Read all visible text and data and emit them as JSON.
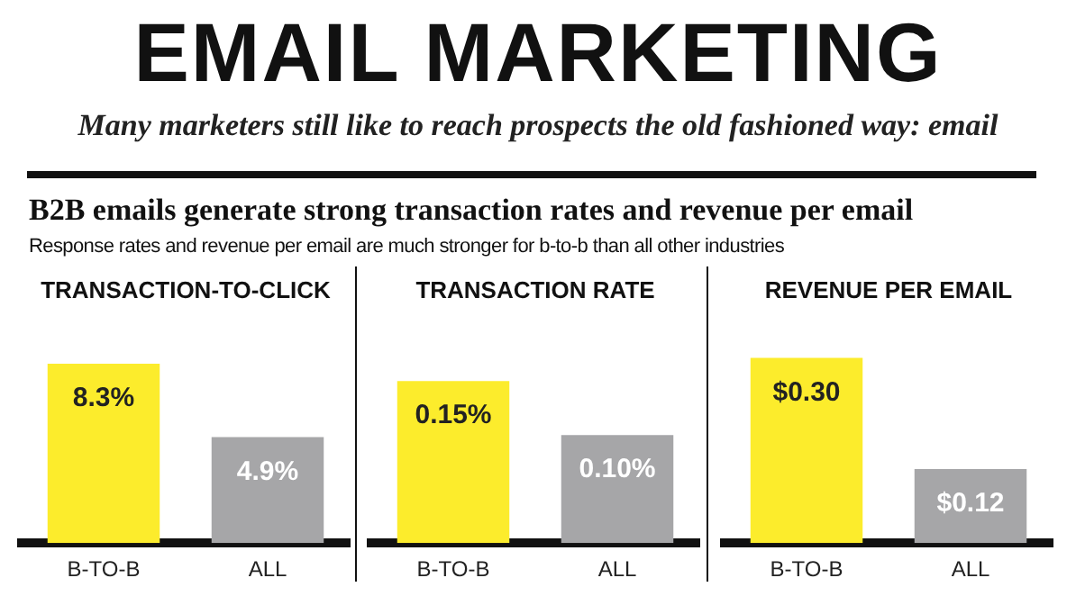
{
  "chart_data": [
    {
      "type": "other",
      "title": "EMAIL MARKETING",
      "subtitle": "Many marketers still like to reach prospects the old fashioned way: email",
      "annotations": [
        "B2B emails generate strong transaction rates and revenue per email",
        "Response rates and revenue per email are much stronger for b-to-b than all other industries"
      ]
    },
    {
      "type": "bar",
      "title": "TRANSACTION-TO-CLICK",
      "categories": [
        "B-TO-B",
        "ALL"
      ],
      "values": [
        8.3,
        4.9
      ],
      "colors": [
        "#fcec2c",
        "#a6a6a8"
      ],
      "value_labels": [
        "8.3%",
        "4.9%"
      ],
      "tick_labels": "x",
      "grid": false,
      "legend": false
    },
    {
      "type": "bar",
      "title": "TRANSACTION RATE",
      "categories": [
        "B-TO-B",
        "ALL"
      ],
      "values": [
        0.15,
        0.1
      ],
      "colors": [
        "#fcec2c",
        "#a6a6a8"
      ],
      "value_labels": [
        "0.15%",
        "0.10%"
      ],
      "tick_labels": "x",
      "grid": false,
      "legend": false
    },
    {
      "type": "bar",
      "title": "REVENUE PER EMAIL",
      "categories": [
        "B-TO-B",
        "ALL"
      ],
      "values": [
        0.3,
        0.12
      ],
      "colors": [
        "#fcec2c",
        "#a6a6a8"
      ],
      "value_labels": [
        "$0.30",
        "$0.12"
      ],
      "tick_labels": "x",
      "grid": false,
      "legend": false
    }
  ]
}
